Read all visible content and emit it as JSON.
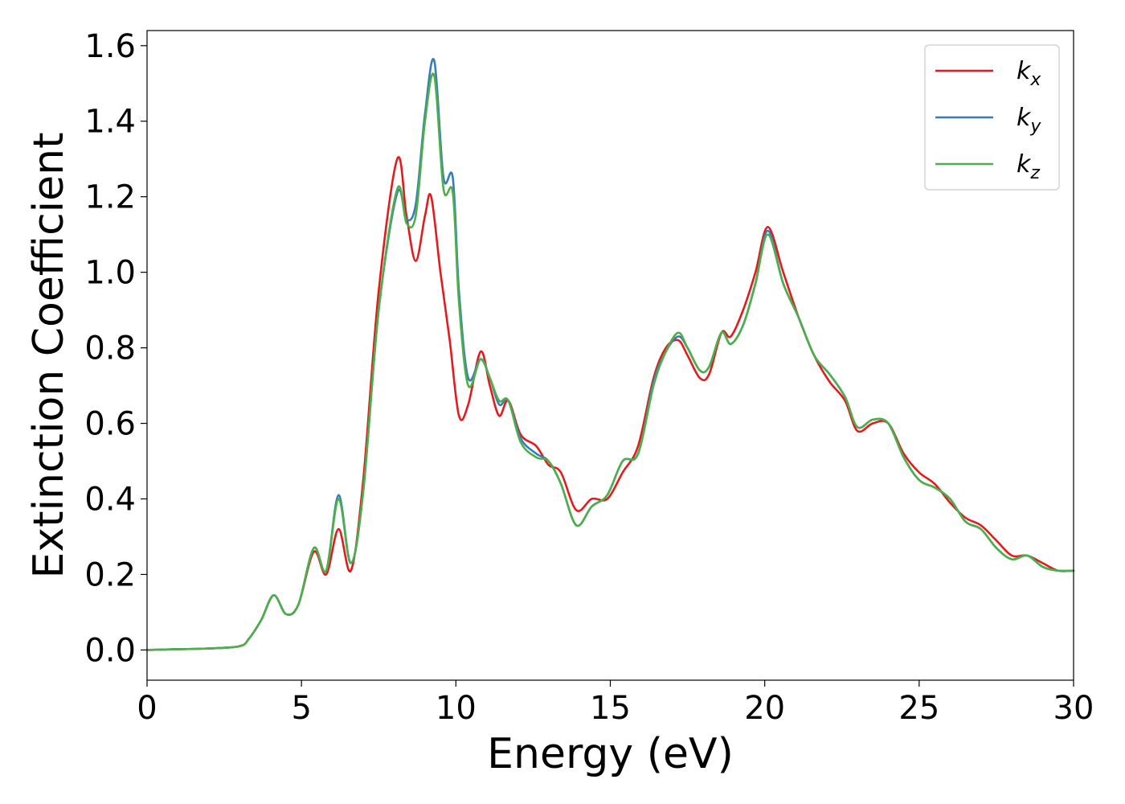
{
  "chart_data": {
    "type": "line",
    "title": "",
    "xlabel": "Energy (eV)",
    "ylabel": "Extinction Coefficient",
    "xlim": [
      0,
      30
    ],
    "ylim": [
      -0.08,
      1.64
    ],
    "xticks": [
      0,
      5,
      10,
      15,
      20,
      25,
      30
    ],
    "xtick_labels": [
      "0",
      "5",
      "10",
      "15",
      "20",
      "25",
      "30"
    ],
    "yticks": [
      0.0,
      0.2,
      0.4,
      0.6,
      0.8,
      1.0,
      1.2,
      1.4,
      1.6
    ],
    "ytick_labels": [
      "0.0",
      "0.2",
      "0.4",
      "0.6",
      "0.8",
      "1.0",
      "1.2",
      "1.4",
      "1.6"
    ],
    "grid": false,
    "legend_position": "top-right",
    "series": [
      {
        "name": "k",
        "subscript": "x",
        "color": "#e41a1c",
        "x": [
          0,
          1,
          2,
          3,
          3.3,
          3.7,
          4.1,
          4.5,
          4.9,
          5.4,
          5.8,
          6.2,
          6.6,
          7.0,
          7.5,
          8.1,
          8.4,
          8.7,
          9.0,
          9.2,
          9.5,
          9.8,
          10.1,
          10.4,
          10.8,
          11.1,
          11.4,
          11.7,
          12.1,
          12.6,
          13.0,
          13.4,
          13.9,
          14.4,
          14.9,
          15.4,
          15.9,
          16.4,
          16.8,
          17.2,
          17.5,
          17.9,
          18.2,
          18.6,
          18.9,
          19.3,
          19.7,
          20.1,
          20.6,
          21.1,
          21.6,
          22.1,
          22.6,
          23.0,
          23.5,
          24.0,
          24.5,
          25.0,
          25.5,
          26.0,
          26.5,
          27.0,
          27.5,
          28.0,
          28.5,
          29.0,
          29.5,
          30.0
        ],
        "y": [
          0.0,
          0.002,
          0.004,
          0.01,
          0.03,
          0.08,
          0.145,
          0.095,
          0.12,
          0.26,
          0.2,
          0.32,
          0.21,
          0.45,
          0.95,
          1.3,
          1.15,
          1.03,
          1.15,
          1.2,
          1.0,
          0.82,
          0.62,
          0.65,
          0.79,
          0.7,
          0.62,
          0.66,
          0.57,
          0.54,
          0.49,
          0.47,
          0.37,
          0.4,
          0.4,
          0.47,
          0.54,
          0.72,
          0.8,
          0.82,
          0.78,
          0.72,
          0.73,
          0.84,
          0.83,
          0.9,
          1.0,
          1.12,
          1.0,
          0.88,
          0.78,
          0.71,
          0.66,
          0.58,
          0.6,
          0.6,
          0.52,
          0.47,
          0.44,
          0.39,
          0.35,
          0.33,
          0.29,
          0.25,
          0.25,
          0.23,
          0.21,
          0.21
        ]
      },
      {
        "name": "k",
        "subscript": "y",
        "color": "#377eb8",
        "x": [
          0,
          1,
          2,
          3,
          3.3,
          3.7,
          4.1,
          4.5,
          4.9,
          5.4,
          5.8,
          6.2,
          6.6,
          7.0,
          7.5,
          8.1,
          8.4,
          8.7,
          9.0,
          9.3,
          9.6,
          9.9,
          10.1,
          10.4,
          10.8,
          11.1,
          11.4,
          11.7,
          12.1,
          12.6,
          13.0,
          13.4,
          13.9,
          14.4,
          14.9,
          15.4,
          15.9,
          16.4,
          16.8,
          17.2,
          17.5,
          17.9,
          18.2,
          18.6,
          18.9,
          19.3,
          19.7,
          20.1,
          20.6,
          21.1,
          21.6,
          22.1,
          22.6,
          23.0,
          23.5,
          24.0,
          24.5,
          25.0,
          25.5,
          26.0,
          26.5,
          27.0,
          27.5,
          28.0,
          28.5,
          29.0,
          29.5,
          30.0
        ],
        "y": [
          0.0,
          0.002,
          0.004,
          0.01,
          0.03,
          0.08,
          0.145,
          0.095,
          0.12,
          0.27,
          0.21,
          0.41,
          0.23,
          0.42,
          0.9,
          1.21,
          1.14,
          1.18,
          1.42,
          1.56,
          1.25,
          1.25,
          0.95,
          0.72,
          0.77,
          0.72,
          0.65,
          0.66,
          0.56,
          0.52,
          0.5,
          0.44,
          0.33,
          0.38,
          0.41,
          0.5,
          0.52,
          0.71,
          0.79,
          0.83,
          0.8,
          0.74,
          0.75,
          0.84,
          0.81,
          0.86,
          0.97,
          1.11,
          0.97,
          0.88,
          0.78,
          0.73,
          0.67,
          0.59,
          0.61,
          0.6,
          0.51,
          0.45,
          0.43,
          0.4,
          0.34,
          0.32,
          0.27,
          0.24,
          0.25,
          0.22,
          0.21,
          0.21
        ]
      },
      {
        "name": "k",
        "subscript": "z",
        "color": "#4daf4a",
        "x": [
          0,
          1,
          2,
          3,
          3.3,
          3.7,
          4.1,
          4.5,
          4.9,
          5.4,
          5.8,
          6.2,
          6.6,
          7.0,
          7.5,
          8.1,
          8.4,
          8.7,
          9.0,
          9.3,
          9.6,
          9.9,
          10.1,
          10.4,
          10.8,
          11.1,
          11.4,
          11.7,
          12.1,
          12.6,
          13.0,
          13.4,
          13.9,
          14.4,
          14.9,
          15.4,
          15.9,
          16.4,
          16.8,
          17.2,
          17.5,
          17.9,
          18.2,
          18.6,
          18.9,
          19.3,
          19.7,
          20.1,
          20.6,
          21.1,
          21.6,
          22.1,
          22.6,
          23.0,
          23.5,
          24.0,
          24.5,
          25.0,
          25.5,
          26.0,
          26.5,
          27.0,
          27.5,
          28.0,
          28.5,
          29.0,
          29.5,
          30.0
        ],
        "y": [
          0.0,
          0.002,
          0.004,
          0.01,
          0.03,
          0.08,
          0.145,
          0.095,
          0.12,
          0.27,
          0.21,
          0.4,
          0.23,
          0.42,
          0.9,
          1.22,
          1.13,
          1.15,
          1.4,
          1.52,
          1.22,
          1.21,
          0.92,
          0.7,
          0.77,
          0.72,
          0.66,
          0.66,
          0.55,
          0.51,
          0.5,
          0.44,
          0.33,
          0.38,
          0.41,
          0.5,
          0.52,
          0.7,
          0.79,
          0.84,
          0.8,
          0.74,
          0.75,
          0.84,
          0.81,
          0.86,
          0.97,
          1.1,
          0.97,
          0.88,
          0.78,
          0.73,
          0.67,
          0.59,
          0.61,
          0.6,
          0.51,
          0.45,
          0.43,
          0.4,
          0.34,
          0.32,
          0.27,
          0.24,
          0.25,
          0.22,
          0.21,
          0.21
        ]
      }
    ]
  }
}
